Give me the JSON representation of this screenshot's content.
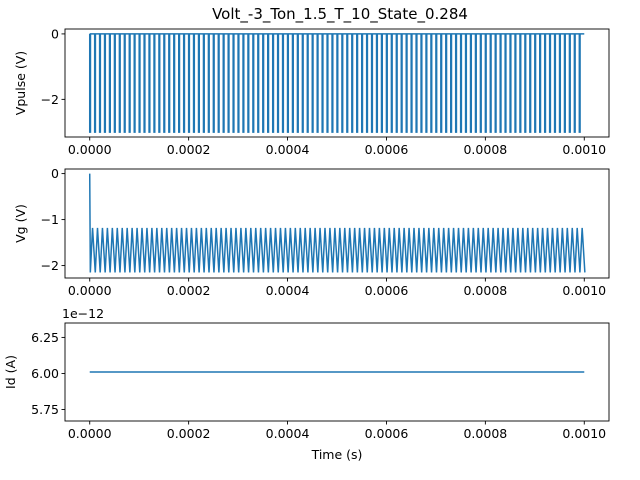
{
  "figure": {
    "title": "Volt_-3_Ton_1.5_T_10_State_0.284",
    "line_color": "#1f77b4"
  },
  "chart_data": [
    {
      "type": "line",
      "name": "vpulse-plot",
      "ylabel": "Vpulse (V)",
      "xlabel": "",
      "xlim": [
        -5e-05,
        0.00105
      ],
      "ylim": [
        -3.15,
        0.15
      ],
      "xticks": [
        0,
        0.0002,
        0.0004,
        0.0006,
        0.0008,
        0.001
      ],
      "xtick_labels": [
        "0.0000",
        "0.0002",
        "0.0004",
        "0.0006",
        "0.0008",
        "0.0010"
      ],
      "yticks": [
        0,
        -2
      ],
      "ytick_labels": [
        "0",
        "−2"
      ],
      "waveform": {
        "kind": "square-pulse",
        "t_start": 0,
        "t_end": 0.001,
        "pulse_count": 100,
        "high": 0,
        "low": -3
      }
    },
    {
      "type": "line",
      "name": "vg-plot",
      "ylabel": "Vg (V)",
      "xlabel": "",
      "xlim": [
        -5e-05,
        0.00105
      ],
      "ylim": [
        -2.27,
        0.1
      ],
      "xticks": [
        0,
        0.0002,
        0.0004,
        0.0006,
        0.0008,
        0.001
      ],
      "xtick_labels": [
        "0.0000",
        "0.0002",
        "0.0004",
        "0.0006",
        "0.0008",
        "0.0010"
      ],
      "yticks": [
        0,
        -1,
        -2
      ],
      "ytick_labels": [
        "0",
        "−1",
        "−2"
      ],
      "waveform": {
        "kind": "sawtooth-settling",
        "t_start": 0,
        "t_end": 0.001,
        "initial": 0,
        "cycle_count": 100,
        "high": -1.18,
        "low": -2.15
      }
    },
    {
      "type": "line",
      "name": "id-plot",
      "ylabel": "Id (A)",
      "xlabel": "Time (s)",
      "offset_text": "1e−12",
      "xlim": [
        -5e-05,
        0.00105
      ],
      "ylim": [
        5.67,
        6.35
      ],
      "xticks": [
        0,
        0.0002,
        0.0004,
        0.0006,
        0.0008,
        0.001
      ],
      "xtick_labels": [
        "0.0000",
        "0.0002",
        "0.0004",
        "0.0006",
        "0.0008",
        "0.0010"
      ],
      "yticks": [
        5.75,
        6.0,
        6.25
      ],
      "ytick_labels": [
        "5.75",
        "6.00",
        "6.25"
      ],
      "x": [
        0,
        0.001
      ],
      "y": [
        6.01,
        6.01
      ]
    }
  ]
}
